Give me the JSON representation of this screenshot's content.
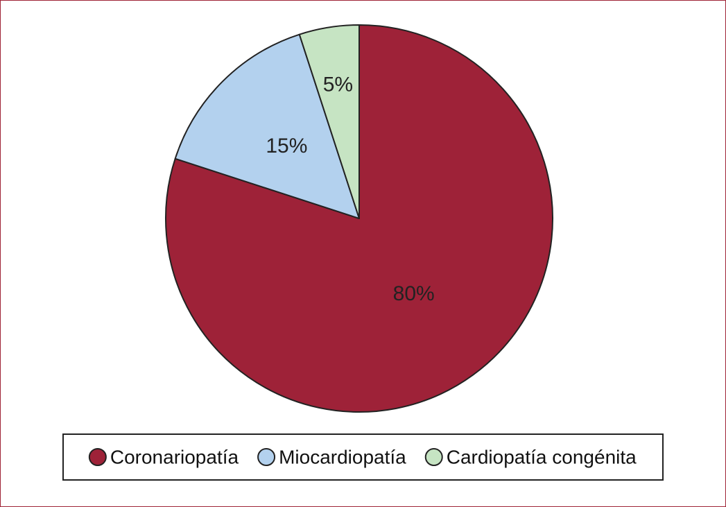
{
  "chart_data": {
    "type": "pie",
    "categories": [
      "Coronariopatía",
      "Miocardiopatía",
      "Cardiopatía congénita"
    ],
    "values": [
      80,
      15,
      5
    ],
    "labels": [
      "80%",
      "15%",
      "5%"
    ],
    "colors": [
      "#9e2238",
      "#b3d1ee",
      "#c6e4c3"
    ],
    "label_colors": [
      "#ffffff",
      "#222222",
      "#222222"
    ],
    "legend_position": "bottom"
  }
}
